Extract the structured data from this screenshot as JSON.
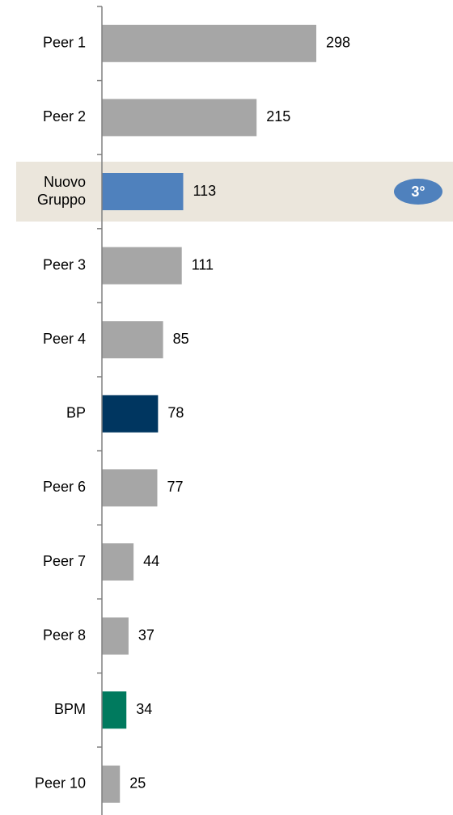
{
  "chart_data": {
    "type": "hbar",
    "categories": [
      "Peer 1",
      "Peer 2",
      "Nuovo\nGruppo",
      "Peer 3",
      "Peer 4",
      "BP",
      "Peer 6",
      "Peer 7",
      "Peer 8",
      "BPM",
      "Peer 10"
    ],
    "values": [
      298,
      215,
      113,
      111,
      85,
      78,
      77,
      44,
      37,
      34,
      25
    ],
    "colors": [
      "#a6a6a6",
      "#a6a6a6",
      "#4f81bd",
      "#a6a6a6",
      "#a6a6a6",
      "#003660",
      "#a6a6a6",
      "#a6a6a6",
      "#a6a6a6",
      "#007a5e",
      "#a6a6a6"
    ],
    "highlight": {
      "index": 2,
      "color": "#ebe6dc",
      "badge": "3°",
      "badge_color": "#4f81bd"
    }
  }
}
